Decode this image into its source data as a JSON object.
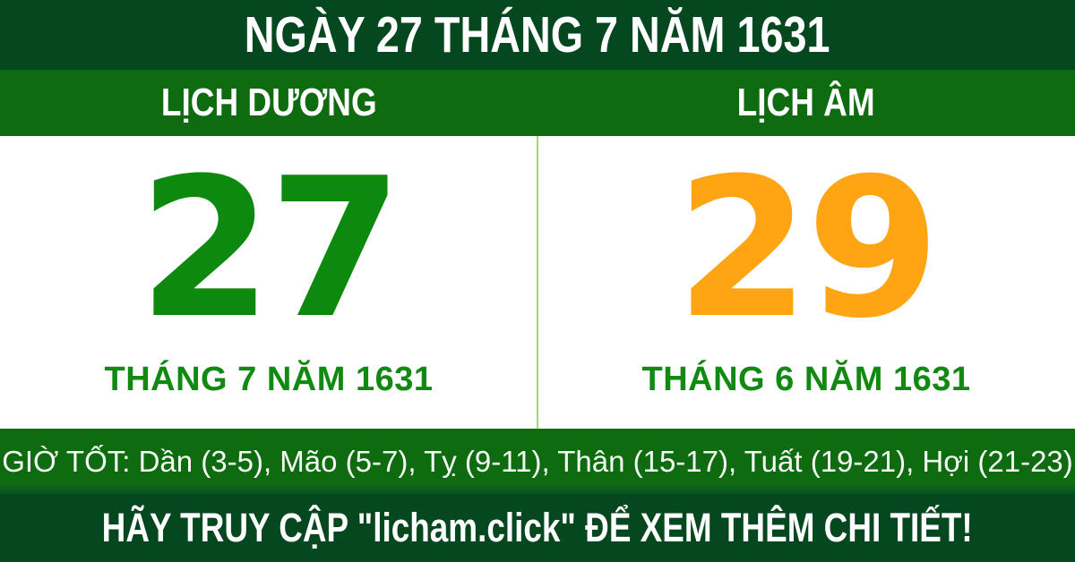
{
  "header": {
    "title": "NGÀY 27 THÁNG 7 NĂM 1631"
  },
  "calendar_bar": {
    "solar_label": "LỊCH DƯƠNG",
    "lunar_label": "LỊCH ÂM"
  },
  "solar": {
    "day": "27",
    "month_year": "THÁNG 7 NĂM 1631"
  },
  "lunar": {
    "day": "29",
    "month_year": "THÁNG 6 NĂM 1631"
  },
  "good_hours": {
    "text": "GIỜ TỐT: Dần (3-5), Mão (5-7), Tỵ (9-11), Thân (15-17), Tuất (19-21), Hợi (21-23)"
  },
  "footer": {
    "text": "HÃY TRUY CẬP \"licham.click\" ĐỂ XEM THÊM CHI TIẾT!"
  },
  "colors": {
    "dark_green": "#05481F",
    "bright_green": "#0E6B10",
    "solar_day_green": "#0D8A0D",
    "lunar_day_orange": "#FFA513",
    "month_label_green": "#128912",
    "divider_light_green": "#A9D37E",
    "text_white": "#FFFFFF"
  }
}
